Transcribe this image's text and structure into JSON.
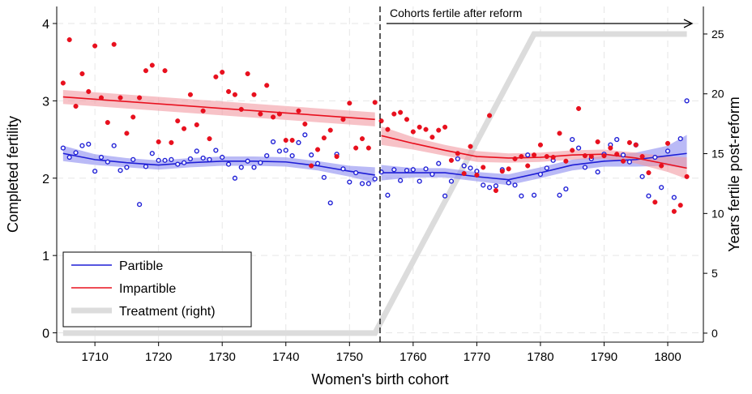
{
  "chart_data": {
    "type": "scatter",
    "xlabel": "Women's birth cohort",
    "ylabel": "Completed fertility",
    "y2label": "Years fertile post-reform",
    "annotation": "Cohorts fertile after reform",
    "reform_line": 1754.8,
    "xlim": [
      1704,
      1805.6
    ],
    "ylim": [
      -0.12,
      4.22
    ],
    "y2lim": [
      -0.75,
      27.3
    ],
    "xticks": [
      1710,
      1720,
      1730,
      1740,
      1750,
      1760,
      1770,
      1780,
      1790,
      1800
    ],
    "yticks": [
      0,
      1,
      2,
      3,
      4
    ],
    "y2ticks": [
      0,
      5,
      10,
      15,
      20,
      25
    ],
    "grid": true,
    "legend": "bottom-left",
    "x": [
      1705,
      1706,
      1707,
      1708,
      1709,
      1710,
      1711,
      1712,
      1713,
      1714,
      1715,
      1716,
      1717,
      1718,
      1719,
      1720,
      1721,
      1722,
      1723,
      1724,
      1725,
      1726,
      1727,
      1728,
      1729,
      1730,
      1731,
      1732,
      1733,
      1734,
      1735,
      1736,
      1737,
      1738,
      1739,
      1740,
      1741,
      1742,
      1743,
      1744,
      1745,
      1746,
      1747,
      1748,
      1749,
      1750,
      1751,
      1752,
      1753,
      1754,
      1755,
      1756,
      1757,
      1758,
      1759,
      1760,
      1761,
      1762,
      1763,
      1764,
      1765,
      1766,
      1767,
      1768,
      1769,
      1770,
      1771,
      1772,
      1773,
      1774,
      1775,
      1776,
      1777,
      1778,
      1779,
      1780,
      1781,
      1782,
      1783,
      1784,
      1785,
      1786,
      1787,
      1788,
      1789,
      1790,
      1791,
      1792,
      1793,
      1794,
      1795,
      1796,
      1797,
      1798,
      1799,
      1800,
      1801,
      1802,
      1803
    ],
    "series": [
      {
        "name": "Partible",
        "color": "#1f1fd6",
        "band_color": "#8c8cf0",
        "marker": "hollow",
        "values": [
          2.39,
          2.27,
          2.33,
          2.42,
          2.44,
          2.09,
          2.27,
          2.21,
          2.42,
          2.1,
          2.14,
          2.24,
          1.66,
          2.15,
          2.32,
          2.23,
          2.23,
          2.24,
          2.18,
          2.2,
          2.25,
          2.35,
          2.26,
          2.24,
          2.36,
          2.27,
          2.18,
          2.0,
          2.14,
          2.22,
          2.14,
          2.2,
          2.29,
          2.47,
          2.35,
          2.36,
          2.29,
          2.46,
          2.56,
          2.3,
          2.19,
          2.01,
          1.68,
          2.31,
          2.12,
          1.95,
          2.07,
          1.93,
          1.93,
          1.99,
          2.08,
          1.78,
          2.11,
          1.97,
          2.1,
          2.11,
          1.96,
          2.12,
          2.05,
          2.19,
          1.77,
          1.96,
          2.25,
          2.16,
          2.13,
          2.09,
          1.91,
          1.88,
          1.9,
          2.11,
          1.94,
          1.91,
          1.77,
          2.3,
          1.78,
          2.05,
          2.13,
          2.23,
          1.78,
          1.86,
          2.5,
          2.39,
          2.14,
          2.25,
          2.08,
          2.31,
          2.43,
          2.5,
          2.3,
          2.21,
          2.43,
          2.02,
          1.77,
          2.27,
          1.88,
          2.35,
          1.75,
          2.51,
          3.0
        ],
        "fits": [
          {
            "x": [
              1705,
              1710,
              1715,
              1720,
              1725,
              1730,
              1735,
              1740,
              1745,
              1750,
              1754
            ],
            "values": [
              2.32,
              2.24,
              2.2,
              2.17,
              2.2,
              2.22,
              2.22,
              2.21,
              2.16,
              2.09,
              2.04
            ],
            "lower": [
              2.22,
              2.17,
              2.14,
              2.11,
              2.14,
              2.16,
              2.16,
              2.15,
              2.1,
              2.02,
              1.94
            ],
            "upper": [
              2.42,
              2.31,
              2.26,
              2.23,
              2.26,
              2.28,
              2.28,
              2.27,
              2.22,
              2.16,
              2.14
            ]
          },
          {
            "x": [
              1755,
              1760,
              1765,
              1770,
              1775,
              1780,
              1785,
              1790,
              1795,
              1800,
              1803
            ],
            "values": [
              2.07,
              2.07,
              2.07,
              2.02,
              1.98,
              2.07,
              2.17,
              2.22,
              2.24,
              2.29,
              2.32
            ],
            "lower": [
              1.97,
              2.01,
              2.01,
              1.96,
              1.91,
              2.0,
              2.1,
              2.15,
              2.15,
              2.16,
              2.12
            ],
            "upper": [
              2.17,
              2.13,
              2.13,
              2.08,
              2.05,
              2.14,
              2.24,
              2.29,
              2.33,
              2.42,
              2.56
            ]
          }
        ]
      },
      {
        "name": "Impartible",
        "color": "#e8101e",
        "band_color": "#f29aa2",
        "marker": "filled",
        "values": [
          3.23,
          3.79,
          2.93,
          3.35,
          3.12,
          3.71,
          3.04,
          2.72,
          3.73,
          3.04,
          2.58,
          2.79,
          3.04,
          3.39,
          3.46,
          2.47,
          3.39,
          2.46,
          2.74,
          2.64,
          3.08,
          2.69,
          2.87,
          2.51,
          3.31,
          3.37,
          3.12,
          3.08,
          2.89,
          3.35,
          3.08,
          2.83,
          3.2,
          2.79,
          2.83,
          2.49,
          2.49,
          2.87,
          2.7,
          2.16,
          2.37,
          2.52,
          2.62,
          2.28,
          2.76,
          2.97,
          2.39,
          2.51,
          2.39,
          2.98,
          2.74,
          2.63,
          2.83,
          2.85,
          2.76,
          2.6,
          2.66,
          2.63,
          2.53,
          2.62,
          2.66,
          2.23,
          2.32,
          2.06,
          2.41,
          2.04,
          2.14,
          2.81,
          1.84,
          2.09,
          2.12,
          2.25,
          2.28,
          2.16,
          2.3,
          2.43,
          2.28,
          2.27,
          2.58,
          2.22,
          2.36,
          2.9,
          2.29,
          2.28,
          2.47,
          2.29,
          2.39,
          2.31,
          2.22,
          2.46,
          2.43,
          2.28,
          2.07,
          1.69,
          2.16,
          2.45,
          1.57,
          1.65,
          2.02
        ],
        "fits": [
          {
            "x": [
              1705,
              1754
            ],
            "values": [
              3.05,
              2.76
            ],
            "lower": [
              2.96,
              2.67
            ],
            "upper": [
              3.14,
              2.85
            ]
          },
          {
            "x": [
              1755,
              1760,
              1765,
              1770,
              1775,
              1780,
              1785,
              1790,
              1795,
              1800,
              1803
            ],
            "values": [
              2.55,
              2.45,
              2.36,
              2.28,
              2.26,
              2.27,
              2.3,
              2.31,
              2.26,
              2.18,
              2.13
            ],
            "lower": [
              2.43,
              2.37,
              2.29,
              2.21,
              2.2,
              2.21,
              2.24,
              2.25,
              2.19,
              2.08,
              1.99
            ],
            "upper": [
              2.67,
              2.53,
              2.43,
              2.35,
              2.32,
              2.33,
              2.36,
              2.37,
              2.33,
              2.28,
              2.27
            ]
          }
        ]
      },
      {
        "name": "Treatment (right)",
        "color": "#dcdcdc",
        "axis": "y2",
        "x": [
          1705,
          1754,
          1779,
          1803
        ],
        "values": [
          0,
          0,
          25,
          25
        ]
      }
    ]
  }
}
